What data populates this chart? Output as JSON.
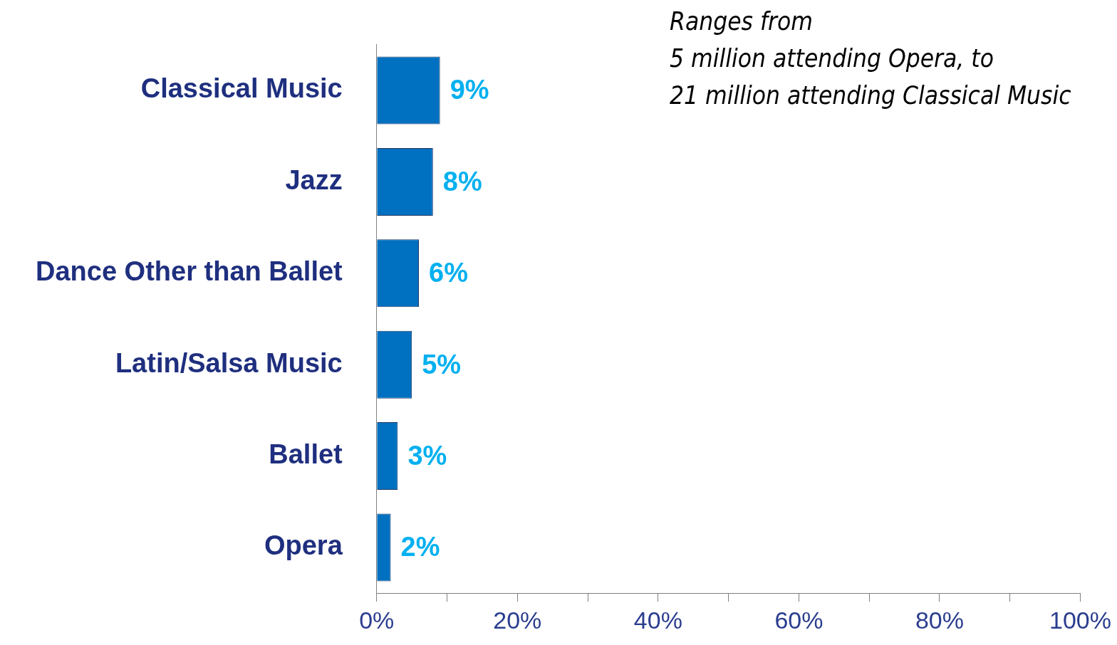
{
  "chart_data": {
    "type": "bar",
    "orientation": "horizontal",
    "categories": [
      "Classical Music",
      "Jazz",
      "Dance Other than Ballet",
      "Latin/Salsa Music",
      "Ballet",
      "Opera"
    ],
    "values": [
      9,
      8,
      6,
      5,
      3,
      2
    ],
    "color": "#0070c0",
    "value_labels": [
      "9%",
      "8%",
      "6%",
      "5%",
      "3%",
      "2%"
    ],
    "xlim": [
      0,
      100
    ],
    "xticks": [
      {
        "value": 0,
        "label": "0%"
      },
      {
        "value": 10,
        "label": null
      },
      {
        "value": 20,
        "label": "20%"
      },
      {
        "value": 30,
        "label": null
      },
      {
        "value": 40,
        "label": "40%"
      },
      {
        "value": 50,
        "label": null
      },
      {
        "value": 60,
        "label": "60%"
      },
      {
        "value": 70,
        "label": null
      },
      {
        "value": 80,
        "label": "80%"
      },
      {
        "value": 90,
        "label": null
      },
      {
        "value": 100,
        "label": "100%"
      }
    ],
    "grid": false,
    "legend": false,
    "annotations": [
      "Ranges from\n5 million attending Opera, to\n21 million attending Classical Music"
    ]
  }
}
